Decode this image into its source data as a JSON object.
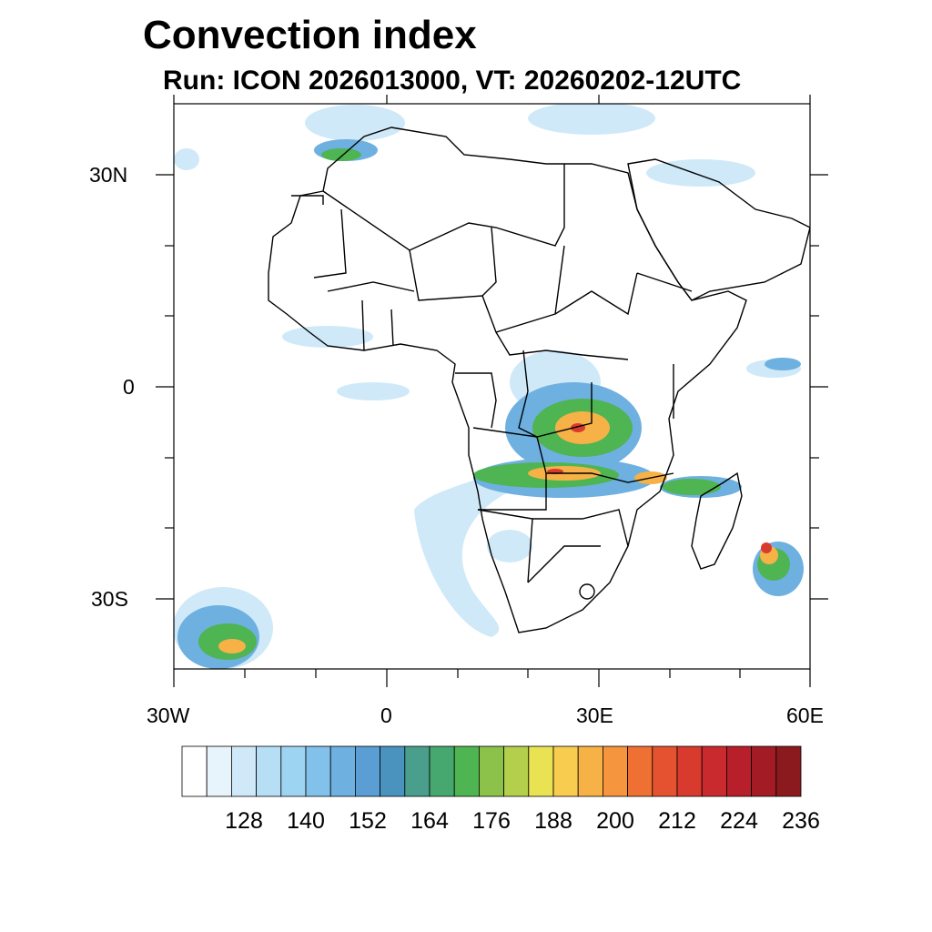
{
  "title": "Convection index",
  "subtitle": "Run: ICON 2026013000,  VT: 20260202-12UTC",
  "axes": {
    "lat_labels": [
      "30N",
      "0",
      "30S"
    ],
    "lon_labels": [
      "30W",
      "0",
      "30E",
      "60E"
    ]
  },
  "colorbar": {
    "colors": [
      "#ffffff",
      "#e8f4fb",
      "#cfe9f8",
      "#b6dff6",
      "#9dd4f2",
      "#82c2ea",
      "#6eb0e0",
      "#5a9ed4",
      "#4a93bf",
      "#4a9e8c",
      "#46a86e",
      "#4fb452",
      "#8cc24a",
      "#b4cf4b",
      "#e9e252",
      "#f7cc4f",
      "#f6b247",
      "#f5953d",
      "#ef7033",
      "#e5522f",
      "#d93a2e",
      "#c92a2e",
      "#b71f2a",
      "#a31b24",
      "#8b1a1e"
    ],
    "labels": [
      "128",
      "140",
      "152",
      "164",
      "176",
      "188",
      "200",
      "212",
      "224",
      "236"
    ]
  },
  "map_features": {
    "land_outline": "Africa and Arabian Peninsula country borders",
    "field": "convection index shading"
  }
}
